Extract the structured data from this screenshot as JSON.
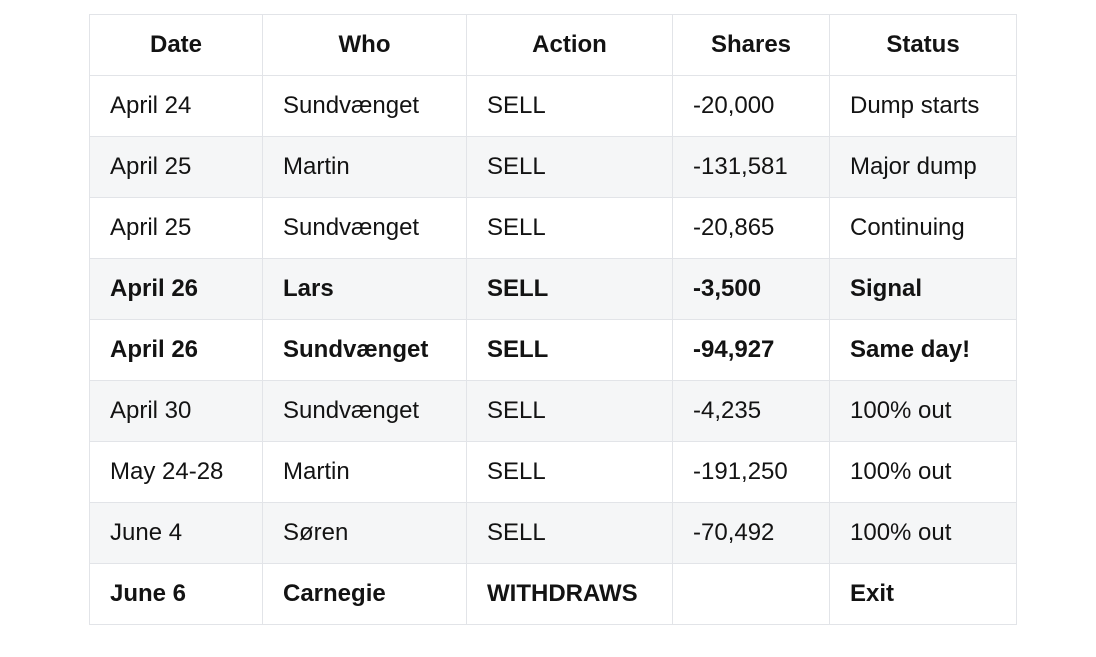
{
  "chart_data": {
    "type": "table",
    "columns": [
      "Date",
      "Who",
      "Action",
      "Shares",
      "Status"
    ],
    "rows": [
      {
        "cells": [
          "April 24",
          "Sundvænget",
          "SELL",
          "-20,000",
          "Dump starts"
        ],
        "bold": false
      },
      {
        "cells": [
          "April 25",
          "Martin",
          "SELL",
          "-131,581",
          "Major dump"
        ],
        "bold": false
      },
      {
        "cells": [
          "April 25",
          "Sundvænget",
          "SELL",
          "-20,865",
          "Continuing"
        ],
        "bold": false
      },
      {
        "cells": [
          "April 26",
          "Lars",
          "SELL",
          "-3,500",
          "Signal"
        ],
        "bold": true
      },
      {
        "cells": [
          "April 26",
          "Sundvænget",
          "SELL",
          "-94,927",
          "Same day!"
        ],
        "bold": true
      },
      {
        "cells": [
          "April 30",
          "Sundvænget",
          "SELL",
          "-4,235",
          "100% out"
        ],
        "bold": false
      },
      {
        "cells": [
          "May 24-28",
          "Martin",
          "SELL",
          "-191,250",
          "100% out"
        ],
        "bold": false
      },
      {
        "cells": [
          "June 4",
          "Søren",
          "SELL",
          "-70,492",
          "100% out"
        ],
        "bold": false
      },
      {
        "cells": [
          "June 6",
          "Carnegie",
          "WITHDRAWS",
          "",
          "Exit"
        ],
        "bold": true
      }
    ],
    "striped": true,
    "header_alignment": "center",
    "cell_alignment": "left",
    "legend_position": "none",
    "grid": "all-borders"
  },
  "colors": {
    "bg": "#ffffff",
    "stripe": "#f5f6f7",
    "border": "#e2e4e8",
    "text": "#131313"
  }
}
